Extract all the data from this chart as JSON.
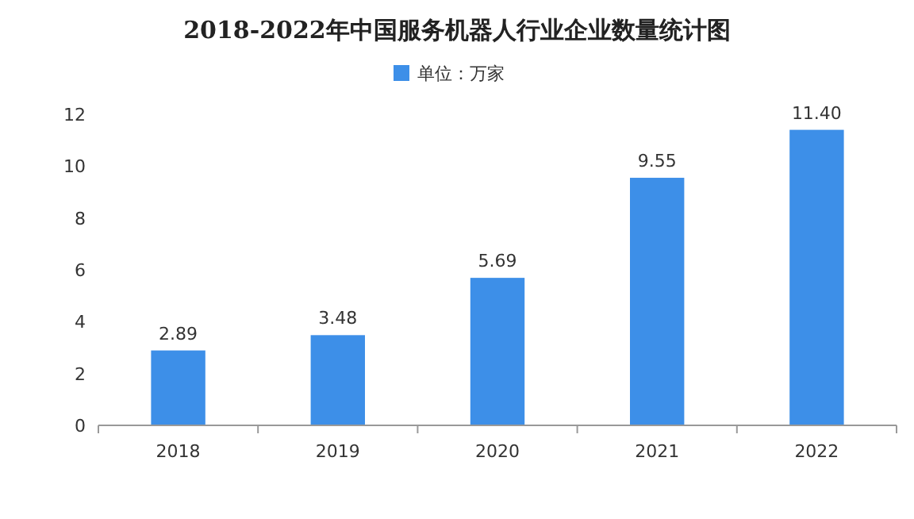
{
  "chart_data": {
    "type": "bar",
    "title": "2018-2022年中国服务机器人行业企业数量统计图",
    "categories": [
      "2018",
      "2019",
      "2020",
      "2021",
      "2022"
    ],
    "series": [
      {
        "name": "单位：万家",
        "color": "#3d8fe8",
        "values": [
          2.89,
          3.48,
          5.69,
          9.55,
          11.4
        ],
        "value_labels": [
          "2.89",
          "3.48",
          "5.69",
          "9.55",
          "11.40"
        ]
      }
    ],
    "ylim": [
      0,
      12
    ],
    "yticks": [
      0,
      2,
      4,
      6,
      8,
      10,
      12
    ],
    "legend": "top"
  }
}
